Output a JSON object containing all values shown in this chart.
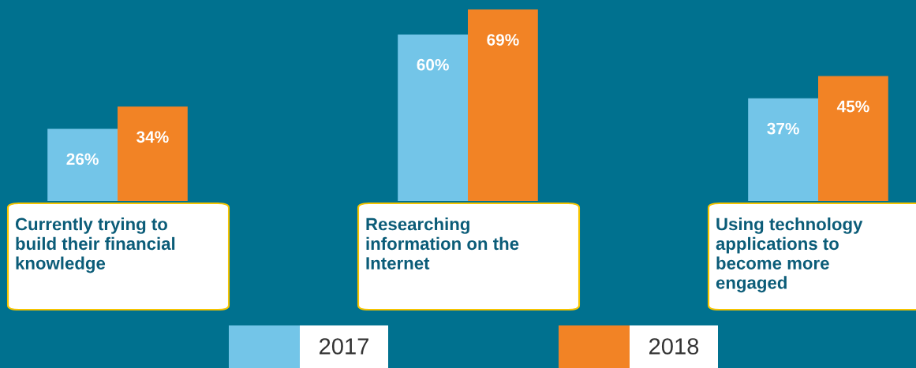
{
  "chart_data": {
    "type": "bar",
    "categories": [
      "Currently trying to build their financial knowledge",
      "Researching information on the Internet",
      "Using technology applications to become more engaged"
    ],
    "series": [
      {
        "name": "2017",
        "color": "#73c5e8",
        "values": [
          26,
          60,
          37
        ],
        "value_labels": [
          "26%",
          "60%",
          "37%"
        ]
      },
      {
        "name": "2018",
        "color": "#f28325",
        "values": [
          34,
          69,
          45
        ],
        "value_labels": [
          "34%",
          "69%",
          "45%"
        ]
      }
    ],
    "legend": "bottom"
  }
}
